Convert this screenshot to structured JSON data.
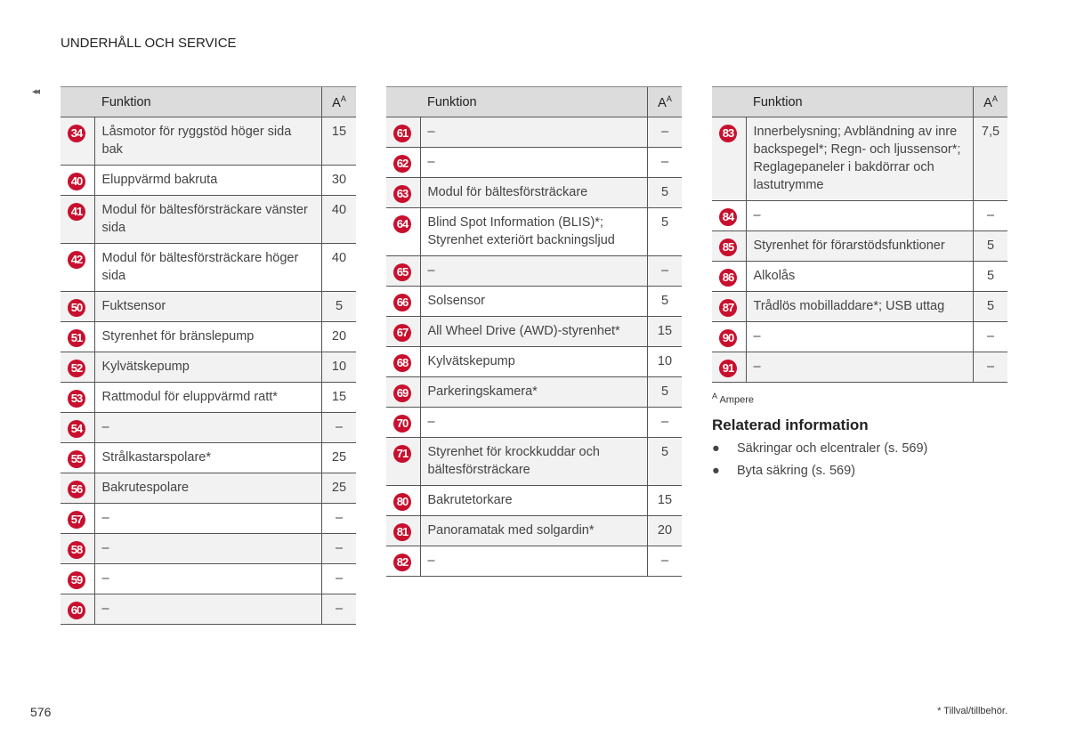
{
  "header": {
    "title": "UNDERHÅLL OCH SERVICE",
    "back_icon": "◂◂"
  },
  "table_headers": {
    "function": "Funktion",
    "ampere": "A",
    "ampere_note": "A"
  },
  "tables": [
    {
      "rows": [
        {
          "n": "34",
          "f": "Låsmotor för ryggstöd höger sida bak",
          "a": "15"
        },
        {
          "n": "40",
          "f": "Eluppvärmd bakruta",
          "a": "30"
        },
        {
          "n": "41",
          "f": "Modul för bältesförsträckare vänster sida",
          "a": "40"
        },
        {
          "n": "42",
          "f": "Modul för bältesförsträckare höger sida",
          "a": "40"
        },
        {
          "n": "50",
          "f": "Fuktsensor",
          "a": "5"
        },
        {
          "n": "51",
          "f": "Styrenhet för bränslepump",
          "a": "20"
        },
        {
          "n": "52",
          "f": "Kylvätskepump",
          "a": "10"
        },
        {
          "n": "53",
          "f": "Rattmodul för eluppvärmd ratt*",
          "a": "15"
        },
        {
          "n": "54",
          "f": "–",
          "a": "–"
        },
        {
          "n": "55",
          "f": "Strålkastarspolare*",
          "a": "25"
        },
        {
          "n": "56",
          "f": "Bakrutespolare",
          "a": "25"
        },
        {
          "n": "57",
          "f": "–",
          "a": "–"
        },
        {
          "n": "58",
          "f": "–",
          "a": "–"
        },
        {
          "n": "59",
          "f": "–",
          "a": "–"
        },
        {
          "n": "60",
          "f": "–",
          "a": "–"
        }
      ]
    },
    {
      "rows": [
        {
          "n": "61",
          "f": "–",
          "a": "–"
        },
        {
          "n": "62",
          "f": "–",
          "a": "–"
        },
        {
          "n": "63",
          "f": "Modul för bältesförsträckare",
          "a": "5"
        },
        {
          "n": "64",
          "f": "Blind Spot Information (BLIS)*; Styrenhet exteriört backningsljud",
          "a": "5"
        },
        {
          "n": "65",
          "f": "–",
          "a": "–"
        },
        {
          "n": "66",
          "f": "Solsensor",
          "a": "5"
        },
        {
          "n": "67",
          "f": "All Wheel Drive (AWD)-styrenhet*",
          "a": "15"
        },
        {
          "n": "68",
          "f": "Kylvätskepump",
          "a": "10"
        },
        {
          "n": "69",
          "f": "Parkeringskamera*",
          "a": "5"
        },
        {
          "n": "70",
          "f": "–",
          "a": "–"
        },
        {
          "n": "71",
          "f": "Styrenhet för krockkuddar och bältesförsträckare",
          "a": "5"
        },
        {
          "n": "80",
          "f": "Bakrutetorkare",
          "a": "15"
        },
        {
          "n": "81",
          "f": "Panoramatak med solgardin*",
          "a": "20"
        },
        {
          "n": "82",
          "f": "–",
          "a": "–"
        }
      ]
    },
    {
      "rows": [
        {
          "n": "83",
          "f": "Innerbelysning; Avbländning av inre backspegel*; Regn- och ljussensor*; Reglagepaneler i bakdörrar och lastutrymme",
          "a": "7,5"
        },
        {
          "n": "84",
          "f": "–",
          "a": "–"
        },
        {
          "n": "85",
          "f": "Styrenhet för förarstödsfunktioner",
          "a": "5"
        },
        {
          "n": "86",
          "f": "Alkolås",
          "a": "5"
        },
        {
          "n": "87",
          "f": "Trådlös mobilladdare*; USB uttag",
          "a": "5"
        },
        {
          "n": "90",
          "f": "–",
          "a": "–"
        },
        {
          "n": "91",
          "f": "–",
          "a": "–"
        }
      ]
    }
  ],
  "footnote": {
    "mark": "A",
    "text": "Ampere"
  },
  "related": {
    "title": "Relaterad information",
    "items": [
      "Säkringar och elcentraler (s. 569)",
      "Byta säkring (s. 569)"
    ]
  },
  "page_number": "576",
  "optional_note": "* Tillval/tillbehör.",
  "colors": {
    "badge": "#c8102e",
    "header_bg": "#dcdcdc",
    "alt_row": "#f2f2f2"
  }
}
